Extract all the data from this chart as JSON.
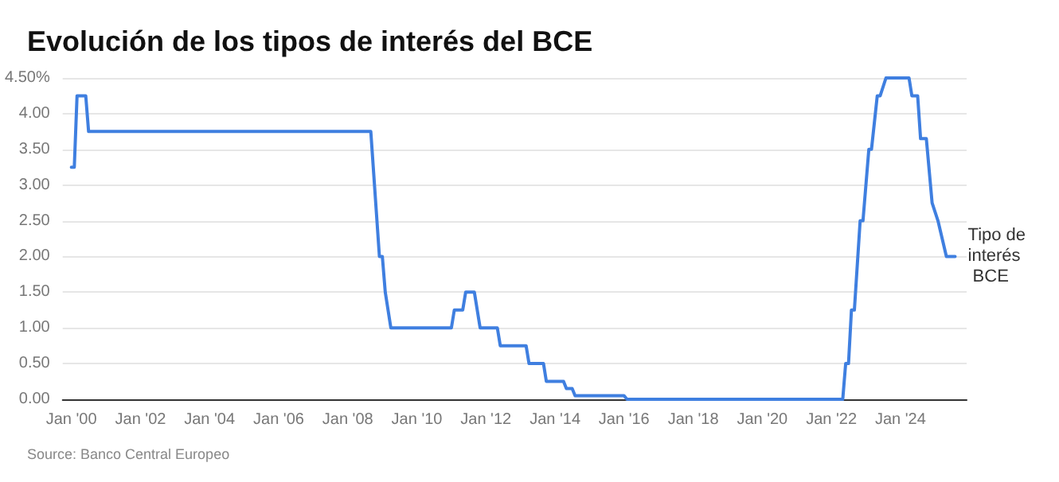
{
  "chart_data": {
    "type": "line",
    "title": "Evolución de los tipos de interés del BCE",
    "annotations": [
      "Source: Banco Central Europeo"
    ],
    "series": [
      {
        "name": "Tipo de interés BCE",
        "color": "#3f7fe0",
        "x": [
          "2000-01",
          "2000-02",
          "2000-03",
          "2000-06",
          "2000-07",
          "2008-09",
          "2008-12",
          "2009-01",
          "2009-02",
          "2009-04",
          "2011-01",
          "2011-02",
          "2011-05",
          "2011-06",
          "2011-09",
          "2011-11",
          "2012-05",
          "2012-06",
          "2013-03",
          "2013-04",
          "2013-09",
          "2013-10",
          "2014-04",
          "2014-05",
          "2014-07",
          "2014-08",
          "2016-01",
          "2016-02",
          "2022-05",
          "2022-06",
          "2022-07",
          "2022-08",
          "2022-09",
          "2022-11",
          "2022-12",
          "2023-02",
          "2023-03",
          "2023-05",
          "2023-06",
          "2023-08",
          "2024-04",
          "2024-05",
          "2024-07",
          "2024-08",
          "2024-10",
          "2024-12",
          "2025-02",
          "2025-05",
          "2025-08"
        ],
        "values": [
          3.25,
          3.25,
          4.25,
          4.25,
          3.75,
          3.75,
          2.0,
          2.0,
          1.5,
          1.0,
          1.0,
          1.25,
          1.25,
          1.5,
          1.5,
          1.0,
          1.0,
          0.75,
          0.75,
          0.5,
          0.5,
          0.25,
          0.25,
          0.15,
          0.15,
          0.05,
          0.05,
          0,
          0,
          0.5,
          0.5,
          1.25,
          1.25,
          2.5,
          2.5,
          3.5,
          3.5,
          4.25,
          4.25,
          4.5,
          4.5,
          4.25,
          4.25,
          3.65,
          3.65,
          2.75,
          2.5,
          2.0,
          2.0
        ]
      }
    ],
    "xlim": [
      "1999-10",
      "2025-12"
    ],
    "xticks": [
      {
        "value": "2000-01",
        "label": "Jan '00"
      },
      {
        "value": "2002-01",
        "label": "Jan '02"
      },
      {
        "value": "2004-01",
        "label": "Jan '04"
      },
      {
        "value": "2006-01",
        "label": "Jan '06"
      },
      {
        "value": "2008-01",
        "label": "Jan '08"
      },
      {
        "value": "2010-01",
        "label": "Jan '10"
      },
      {
        "value": "2012-01",
        "label": "Jan '12"
      },
      {
        "value": "2014-01",
        "label": "Jan '14"
      },
      {
        "value": "2016-01",
        "label": "Jan '16"
      },
      {
        "value": "2018-01",
        "label": "Jan '18"
      },
      {
        "value": "2020-01",
        "label": "Jan '20"
      },
      {
        "value": "2022-01",
        "label": "Jan '22"
      },
      {
        "value": "2024-01",
        "label": "Jan '24"
      }
    ],
    "ylim": [
      0,
      4.5
    ],
    "yticks": [
      {
        "value": 0,
        "label": "0.00"
      },
      {
        "value": 0.5,
        "label": "0.50"
      },
      {
        "value": 1,
        "label": "1.00"
      },
      {
        "value": 1.5,
        "label": "1.50"
      },
      {
        "value": 2,
        "label": "2.00"
      },
      {
        "value": 2.5,
        "label": "2.50"
      },
      {
        "value": 3,
        "label": "3.00"
      },
      {
        "value": 3.5,
        "label": "3.50"
      },
      {
        "value": 4,
        "label": "4.00"
      },
      {
        "value": 4.5,
        "label": "4.50%"
      }
    ],
    "grid": "y",
    "legend": false,
    "marker": "none",
    "line_style": "solid"
  }
}
